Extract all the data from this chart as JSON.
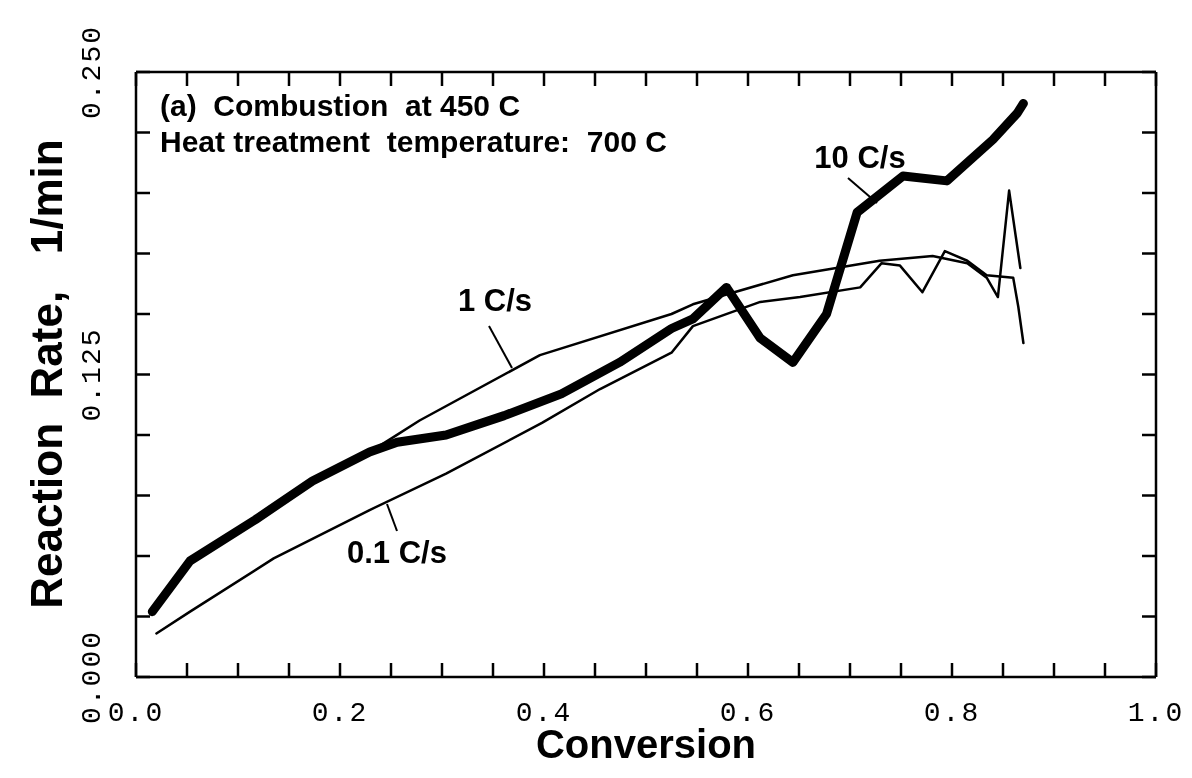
{
  "chart_data": {
    "type": "line",
    "xlabel": "Conversion",
    "ylabel": "Reaction  Rate,   1/min",
    "annotations": [
      "(a)  Combustion  at 450 C",
      "Heat treatment  temperature:  700 C"
    ],
    "xlim": [
      0,
      1
    ],
    "xticks": [
      {
        "value": 0,
        "label": "0.0"
      },
      {
        "value": 0.05,
        "label": null
      },
      {
        "value": 0.1,
        "label": null
      },
      {
        "value": 0.15,
        "label": null
      },
      {
        "value": 0.2,
        "label": "0.2"
      },
      {
        "value": 0.25,
        "label": null
      },
      {
        "value": 0.3,
        "label": null
      },
      {
        "value": 0.35,
        "label": null
      },
      {
        "value": 0.4,
        "label": "0.4"
      },
      {
        "value": 0.45,
        "label": null
      },
      {
        "value": 0.5,
        "label": null
      },
      {
        "value": 0.55,
        "label": null
      },
      {
        "value": 0.6,
        "label": "0.6"
      },
      {
        "value": 0.65,
        "label": null
      },
      {
        "value": 0.7,
        "label": null
      },
      {
        "value": 0.75,
        "label": null
      },
      {
        "value": 0.8,
        "label": "0.8"
      },
      {
        "value": 0.85,
        "label": null
      },
      {
        "value": 0.9,
        "label": null
      },
      {
        "value": 0.95,
        "label": null
      },
      {
        "value": 1,
        "label": "1.0"
      }
    ],
    "ylim": [
      0,
      0.25
    ],
    "yticks": [
      {
        "value": 0,
        "label": "0.000"
      },
      {
        "value": 0.025,
        "label": null
      },
      {
        "value": 0.05,
        "label": null
      },
      {
        "value": 0.075,
        "label": null
      },
      {
        "value": 0.1,
        "label": null
      },
      {
        "value": 0.125,
        "label": "0.125"
      },
      {
        "value": 0.15,
        "label": null
      },
      {
        "value": 0.175,
        "label": null
      },
      {
        "value": 0.2,
        "label": null
      },
      {
        "value": 0.225,
        "label": null
      },
      {
        "value": 0.25,
        "label": "0.250"
      }
    ],
    "series": [
      {
        "name": "10 C/s",
        "color": "#000000",
        "x": [
          0.016,
          0.053,
          0.117,
          0.173,
          0.229,
          0.256,
          0.304,
          0.361,
          0.417,
          0.474,
          0.525,
          0.546,
          0.579,
          0.612,
          0.644,
          0.677,
          0.707,
          0.752,
          0.795,
          0.84,
          0.864,
          0.87
        ],
        "values": [
          0.027,
          0.048,
          0.065,
          0.081,
          0.093,
          0.097,
          0.1,
          0.108,
          0.117,
          0.13,
          0.144,
          0.148,
          0.161,
          0.14,
          0.13,
          0.15,
          0.192,
          0.207,
          0.205,
          0.222,
          0.233,
          0.237
        ]
      },
      {
        "name": "1 C/s",
        "color": "#000000",
        "x": [
          0.016,
          0.053,
          0.117,
          0.173,
          0.229,
          0.252,
          0.278,
          0.396,
          0.525,
          0.546,
          0.644,
          0.729,
          0.781,
          0.815,
          0.834,
          0.845,
          0.856,
          0.867
        ],
        "values": [
          0.027,
          0.048,
          0.065,
          0.081,
          0.093,
          0.099,
          0.106,
          0.133,
          0.15,
          0.154,
          0.166,
          0.172,
          0.174,
          0.171,
          0.165,
          0.157,
          0.201,
          0.169
        ]
      },
      {
        "name": "0.1 C/s",
        "color": "#000000",
        "x": [
          0.02,
          0.053,
          0.135,
          0.229,
          0.304,
          0.398,
          0.455,
          0.525,
          0.546,
          0.612,
          0.651,
          0.71,
          0.731,
          0.749,
          0.771,
          0.793,
          0.815,
          0.834,
          0.86,
          0.865,
          0.87
        ],
        "values": [
          0.018,
          0.027,
          0.049,
          0.069,
          0.084,
          0.105,
          0.119,
          0.134,
          0.145,
          0.155,
          0.157,
          0.161,
          0.171,
          0.17,
          0.159,
          0.176,
          0.172,
          0.166,
          0.165,
          0.153,
          0.138
        ]
      }
    ]
  }
}
